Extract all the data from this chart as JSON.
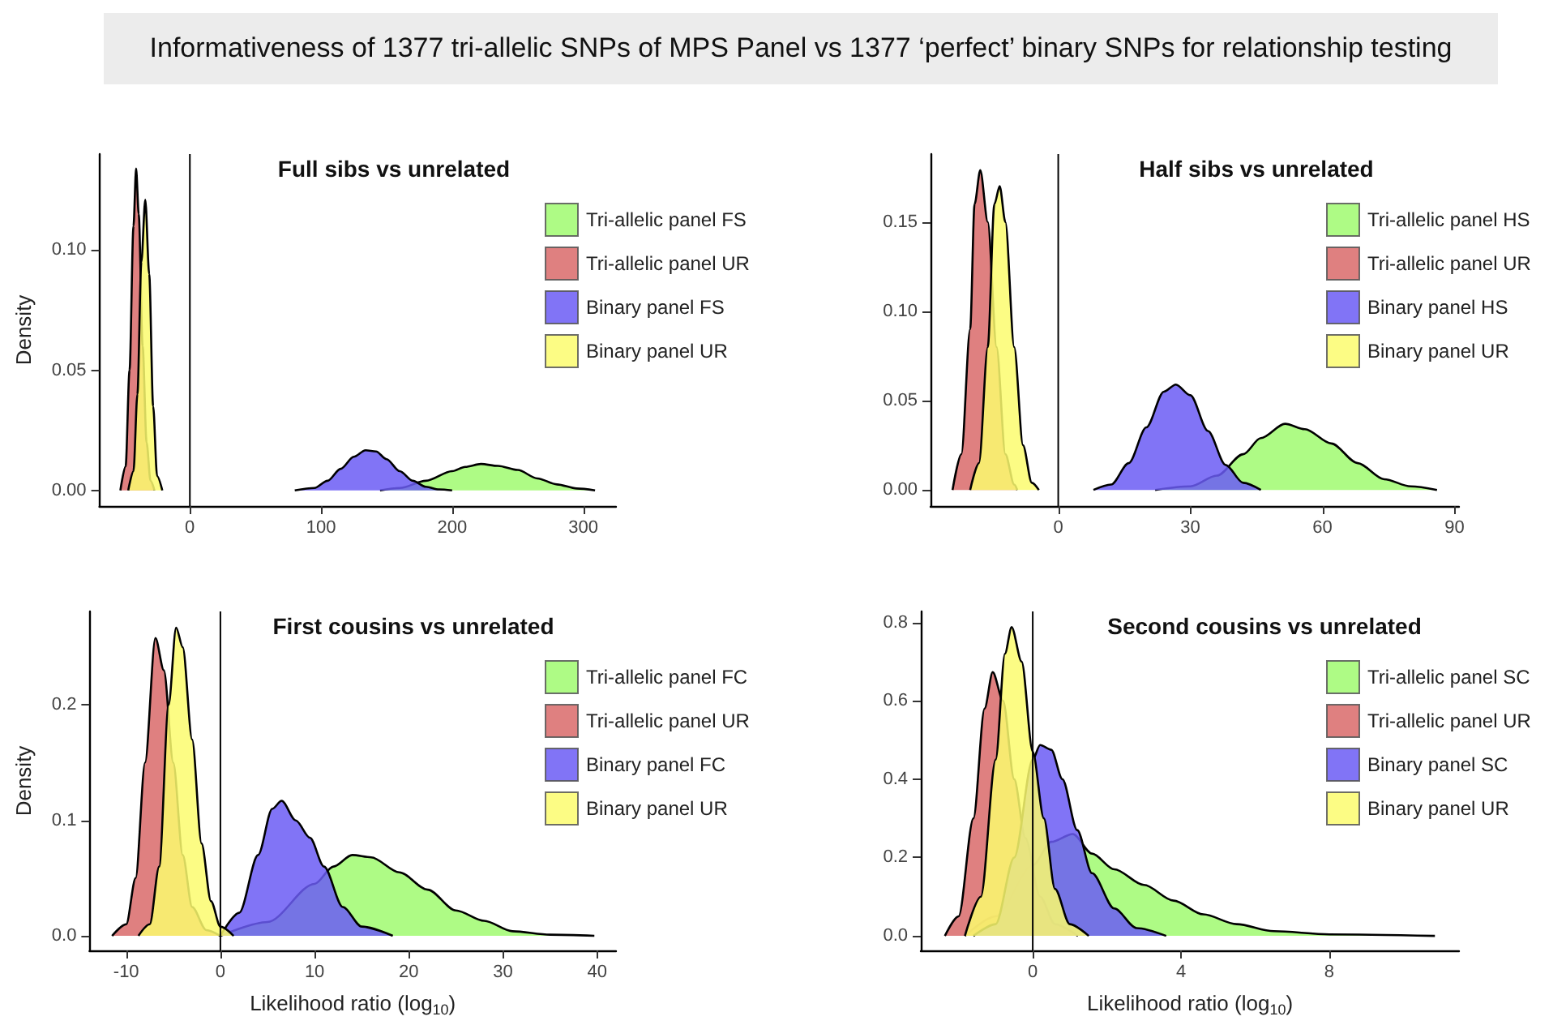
{
  "chart_data": [
    {
      "type": "area",
      "title": "Full sibs vs unrelated",
      "ylabel": "Density",
      "annotations": [
        "Informativeness of 1377 tri-allelic SNPs of MPS Panel vs 1377 ‘perfect’ binary SNPs for relationship testing"
      ],
      "legend": "right",
      "xlim": [
        -69,
        325
      ],
      "xticks": [
        0,
        100,
        200,
        300
      ],
      "ylim": [
        -0.0065,
        0.14
      ],
      "yticks": [
        {
          "value": 0,
          "label": "0.00"
        },
        {
          "value": 0.05,
          "label": "0.05"
        },
        {
          "value": 0.1,
          "label": "0.10"
        }
      ],
      "ref_lines": [
        {
          "axis": "x",
          "value": 0,
          "color": "#000000"
        }
      ],
      "series": [
        {
          "name": "Tri-allelic panel FS",
          "color": "#a0fa70",
          "x": [
            145,
            160,
            180,
            200,
            210,
            222,
            235,
            250,
            265,
            280,
            295,
            309
          ],
          "values": [
            0,
            0.001,
            0.004,
            0.008,
            0.0098,
            0.011,
            0.0102,
            0.0085,
            0.005,
            0.0025,
            0.0008,
            0
          ]
        },
        {
          "name": "Tri-allelic panel UR",
          "color": "#d96a6a",
          "x": [
            -53,
            -49,
            -46,
            -43,
            -41,
            -39,
            -36,
            -33,
            -30,
            -27
          ],
          "values": [
            0,
            0.01,
            0.05,
            0.11,
            0.134,
            0.115,
            0.06,
            0.02,
            0.004,
            0
          ]
        },
        {
          "name": "Binary panel FS",
          "color": "#6b5cf5",
          "x": [
            80,
            95,
            105,
            115,
            125,
            134,
            142,
            150,
            160,
            170,
            180,
            190,
            200
          ],
          "values": [
            0,
            0.001,
            0.004,
            0.009,
            0.014,
            0.0167,
            0.0162,
            0.013,
            0.008,
            0.004,
            0.0015,
            0.0004,
            0
          ]
        },
        {
          "name": "Binary panel UR",
          "color": "#fbfb6e",
          "x": [
            -47,
            -43,
            -40,
            -37,
            -34,
            -31,
            -28,
            -25,
            -21
          ],
          "values": [
            0,
            0.008,
            0.04,
            0.095,
            0.121,
            0.09,
            0.035,
            0.006,
            0
          ]
        }
      ]
    },
    {
      "type": "area",
      "title": "Half sibs vs unrelated",
      "legend": "right",
      "xlim": [
        -29,
        91
      ],
      "xticks": [
        0,
        30,
        60,
        90
      ],
      "ylim": [
        -0.009,
        0.188
      ],
      "yticks": [
        {
          "value": 0,
          "label": "0.00"
        },
        {
          "value": 0.05,
          "label": "0.05"
        },
        {
          "value": 0.1,
          "label": "0.10"
        },
        {
          "value": 0.15,
          "label": "0.15"
        }
      ],
      "ref_lines": [
        {
          "axis": "x",
          "value": 0,
          "color": "#000000"
        }
      ],
      "series": [
        {
          "name": "Tri-allelic panel HS",
          "color": "#a0fa70",
          "x": [
            22,
            30,
            36,
            42,
            46,
            51.5,
            56,
            62,
            68,
            74,
            80,
            86
          ],
          "values": [
            0,
            0.002,
            0.008,
            0.02,
            0.029,
            0.037,
            0.034,
            0.026,
            0.015,
            0.006,
            0.002,
            0
          ]
        },
        {
          "name": "Tri-allelic panel UR",
          "color": "#d96a6a",
          "x": [
            -24,
            -22,
            -20,
            -19,
            -17.7,
            -16,
            -14,
            -12,
            -10,
            -9.3
          ],
          "values": [
            0,
            0.02,
            0.09,
            0.16,
            0.179,
            0.15,
            0.08,
            0.02,
            0.003,
            0
          ]
        },
        {
          "name": "Binary panel HS",
          "color": "#6b5cf5",
          "x": [
            8,
            12,
            16,
            20,
            24,
            26.7,
            30,
            34,
            38,
            42,
            46
          ],
          "values": [
            0,
            0.003,
            0.015,
            0.035,
            0.055,
            0.059,
            0.053,
            0.033,
            0.014,
            0.004,
            0
          ]
        },
        {
          "name": "Binary panel UR",
          "color": "#fbfb6e",
          "x": [
            -20,
            -18,
            -16,
            -14.5,
            -13.3,
            -12,
            -10,
            -8,
            -6,
            -4.4
          ],
          "values": [
            0,
            0.015,
            0.08,
            0.16,
            0.17,
            0.15,
            0.08,
            0.025,
            0.004,
            0
          ]
        }
      ]
    },
    {
      "type": "area",
      "title": "First cousins vs unrelated",
      "xlabel": "Likelihood ratio (log$_{10}$)",
      "ylabel": "Density",
      "legend": "right",
      "xlim": [
        -13.9,
        42
      ],
      "xticks": [
        -10,
        0,
        10,
        20,
        30,
        40
      ],
      "ylim": [
        -0.0126,
        0.281
      ],
      "yticks": [
        {
          "value": 0,
          "label": "0.0"
        },
        {
          "value": 0.1,
          "label": "0.1"
        },
        {
          "value": 0.2,
          "label": "0.2"
        }
      ],
      "ref_lines": [
        {
          "axis": "x",
          "value": 0,
          "color": "#000000"
        }
      ],
      "series": [
        {
          "name": "Tri-allelic panel FC",
          "color": "#a0fa70",
          "x": [
            0,
            5,
            10,
            12,
            14,
            16,
            19,
            22,
            25,
            28,
            31,
            35,
            39.7
          ],
          "values": [
            0,
            0.012,
            0.045,
            0.06,
            0.07,
            0.068,
            0.055,
            0.04,
            0.022,
            0.013,
            0.004,
            0.001,
            0
          ]
        },
        {
          "name": "Tri-allelic panel UR",
          "color": "#d96a6a",
          "x": [
            -11.5,
            -10,
            -9,
            -8,
            -6.9,
            -6,
            -5,
            -4,
            -3,
            -1.5,
            0
          ],
          "values": [
            0,
            0.01,
            0.05,
            0.15,
            0.258,
            0.23,
            0.15,
            0.07,
            0.025,
            0.005,
            0
          ]
        },
        {
          "name": "Binary panel FC",
          "color": "#6b5cf5",
          "x": [
            0,
            2,
            4,
            5.5,
            6.5,
            8,
            9.5,
            11,
            13,
            15,
            18.3
          ],
          "values": [
            0,
            0.02,
            0.07,
            0.11,
            0.117,
            0.1,
            0.085,
            0.06,
            0.025,
            0.008,
            0
          ]
        },
        {
          "name": "Binary panel UR",
          "color": "#fbfb6e",
          "x": [
            -8.7,
            -7.5,
            -6.5,
            -5.5,
            -4.7,
            -4,
            -3,
            -2,
            -1,
            0,
            1.4
          ],
          "values": [
            0,
            0.01,
            0.06,
            0.2,
            0.267,
            0.25,
            0.17,
            0.08,
            0.03,
            0.008,
            0
          ]
        }
      ]
    },
    {
      "type": "area",
      "title": "Second cousins vs unrelated",
      "xlabel": "Likelihood ratio (log$_{10}$)",
      "legend": "right",
      "xlim": [
        -3.02,
        11.5
      ],
      "xticks": [
        0,
        4,
        8
      ],
      "ylim": [
        -0.037,
        0.828
      ],
      "yticks": [
        {
          "value": 0,
          "label": "0.0"
        },
        {
          "value": 0.2,
          "label": "0.2"
        },
        {
          "value": 0.4,
          "label": "0.4"
        },
        {
          "value": 0.6,
          "label": "0.6"
        },
        {
          "value": 0.8,
          "label": "0.8"
        }
      ],
      "ref_lines": [
        {
          "axis": "x",
          "value": 0,
          "color": "#000000"
        }
      ],
      "series": [
        {
          "name": "Tri-allelic panel SC",
          "color": "#a0fa70",
          "x": [
            -1.83,
            -1,
            0,
            0.5,
            1.08,
            1.6,
            2.2,
            3,
            3.8,
            4.6,
            5.5,
            6.5,
            8,
            10.85
          ],
          "values": [
            0,
            0.05,
            0.18,
            0.24,
            0.26,
            0.21,
            0.17,
            0.13,
            0.09,
            0.055,
            0.03,
            0.012,
            0.004,
            0
          ]
        },
        {
          "name": "Tri-allelic panel UR",
          "color": "#d96a6a",
          "x": [
            -2.37,
            -2,
            -1.6,
            -1.3,
            -1.08,
            -0.8,
            -0.5,
            -0.2,
            0.2,
            0.6,
            1.22
          ],
          "values": [
            0,
            0.05,
            0.3,
            0.58,
            0.673,
            0.6,
            0.4,
            0.25,
            0.1,
            0.03,
            0
          ]
        },
        {
          "name": "Binary panel SC",
          "color": "#6b5cf5",
          "x": [
            -1.6,
            -1,
            -0.5,
            0,
            0.2,
            0.5,
            0.8,
            1.2,
            1.6,
            2.2,
            2.8,
            3.6
          ],
          "values": [
            0,
            0.03,
            0.2,
            0.45,
            0.487,
            0.475,
            0.4,
            0.27,
            0.16,
            0.07,
            0.02,
            0
          ]
        },
        {
          "name": "Binary panel UR",
          "color": "#fbfb6e",
          "x": [
            -1.83,
            -1.4,
            -1,
            -0.75,
            -0.57,
            -0.3,
            0,
            0.3,
            0.6,
            1,
            1.51
          ],
          "values": [
            0,
            0.1,
            0.45,
            0.72,
            0.788,
            0.7,
            0.47,
            0.3,
            0.12,
            0.03,
            0
          ]
        }
      ]
    }
  ]
}
